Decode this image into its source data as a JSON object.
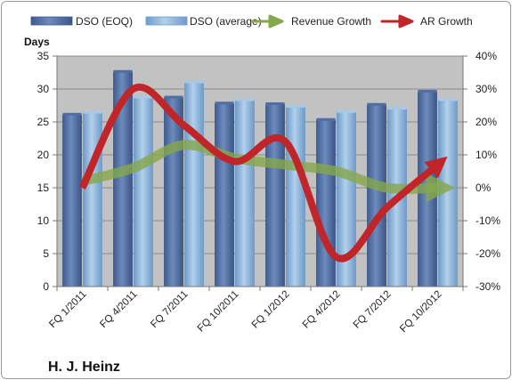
{
  "company": "H. J. Heinz",
  "colors": {
    "plot_bg": "#c2c2c2",
    "gridline": "#8a8a8a",
    "dso_eoq": "#5878a8",
    "dso_eoq_dark": "#3b5688",
    "dso_avg": "#93b8dc",
    "dso_avg_dark": "#6f9bc8",
    "revenue_growth": "#86a84a",
    "ar_growth": "#c0252a"
  },
  "chart_data": {
    "type": "bar",
    "title": "",
    "ylabel": "Days",
    "ylim": [
      0,
      35
    ],
    "yticks": [
      "0",
      "5",
      "10",
      "15",
      "20",
      "25",
      "30",
      "35"
    ],
    "y2lim": [
      -0.3,
      0.4
    ],
    "y2ticks": [
      "-30%",
      "-20%",
      "-10%",
      "0%",
      "10%",
      "20%",
      "30%",
      "40%"
    ],
    "grid": true,
    "legend_position": "top",
    "categories": [
      "FQ 1/2011",
      "FQ 4/2011",
      "FQ 7/2011",
      "FQ 10/2011",
      "FQ 1/2012",
      "FQ 4/2012",
      "FQ 7/2012",
      "FQ 10/2012"
    ],
    "series": [
      {
        "name": "DSO (EOQ)",
        "type": "bar",
        "axis": "left",
        "values": [
          26.1,
          32.6,
          28.7,
          27.8,
          27.7,
          25.3,
          27.6,
          29.6
        ]
      },
      {
        "name": "DSO (average)",
        "type": "bar",
        "axis": "left",
        "values": [
          26.4,
          28.7,
          31.0,
          28.3,
          27.3,
          26.5,
          27.0,
          28.3
        ]
      },
      {
        "name": "Revenue Growth",
        "type": "line",
        "axis": "right",
        "values": [
          0.02,
          0.06,
          0.13,
          0.09,
          0.07,
          0.05,
          0.0,
          0.0
        ]
      },
      {
        "name": "AR Growth",
        "type": "line",
        "axis": "right",
        "values": [
          0.0,
          0.3,
          0.19,
          0.08,
          0.14,
          -0.21,
          -0.06,
          0.07
        ]
      }
    ]
  }
}
